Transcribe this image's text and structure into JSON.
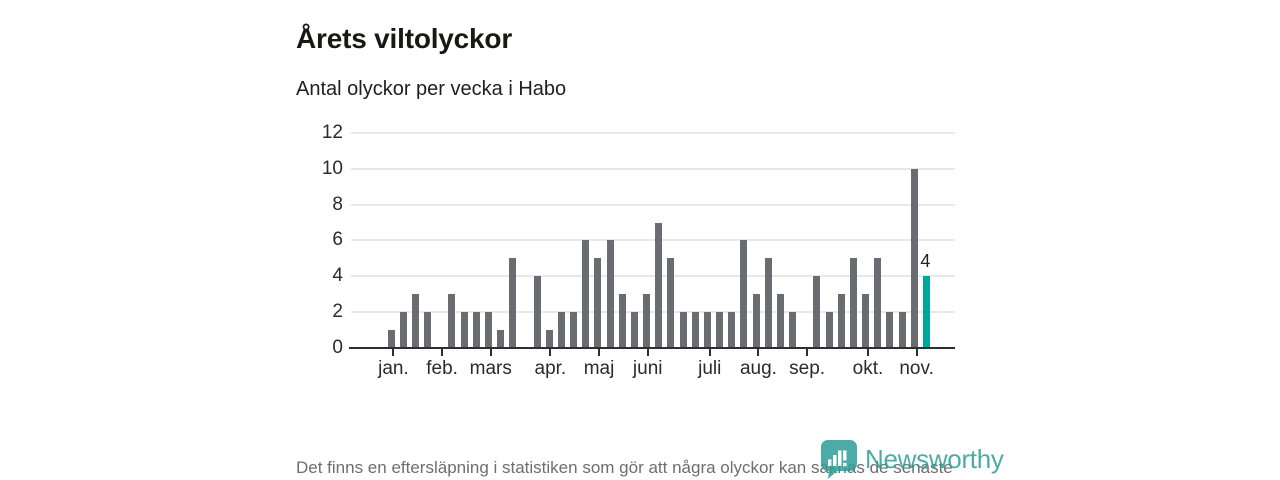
{
  "header": {
    "title": "Årets viltolyckor",
    "subtitle": "Antal olyckor per vecka i Habo"
  },
  "chart_data": {
    "type": "bar",
    "title": "Årets viltolyckor",
    "subtitle": "Antal olyckor per vecka i Habo",
    "x_unit": "vecka",
    "week_start": 1,
    "values": [
      1,
      2,
      3,
      2,
      0,
      3,
      2,
      2,
      2,
      1,
      5,
      0,
      4,
      1,
      2,
      2,
      6,
      5,
      6,
      3,
      2,
      3,
      7,
      5,
      2,
      2,
      2,
      2,
      2,
      6,
      3,
      5,
      3,
      2,
      0,
      4,
      2,
      3,
      5,
      3,
      5,
      2,
      2,
      10,
      4
    ],
    "highlight_index": 44,
    "highlight_value_label": "4",
    "ylim": [
      0,
      12
    ],
    "y_ticks": [
      0,
      2,
      4,
      6,
      8,
      10,
      12
    ],
    "grid": true,
    "legend": "none",
    "x_ticks": [
      {
        "label": "jan.",
        "week": 1.2
      },
      {
        "label": "feb.",
        "week": 5.2
      },
      {
        "label": "mars",
        "week": 9.2
      },
      {
        "label": "apr.",
        "week": 14.1
      },
      {
        "label": "maj",
        "week": 18.1
      },
      {
        "label": "juni",
        "week": 22.1
      },
      {
        "label": "juli",
        "week": 27.2
      },
      {
        "label": "aug.",
        "week": 31.2
      },
      {
        "label": "sep.",
        "week": 35.2
      },
      {
        "label": "okt.",
        "week": 40.2
      },
      {
        "label": "nov.",
        "week": 44.2
      }
    ],
    "bar_color": "#6b6b72",
    "highlight_color": "#00a59c",
    "axis_color": "#2e2e2e",
    "grid_color": "#e8e8e8",
    "tick_label_color": "#2b2b2b"
  },
  "footer": {
    "note": "Det finns en eftersläpning i statistiken som gör att några olyckor kan saknas de senaste veckorna.",
    "brand": "Newsworthy",
    "brand_color": "#2f9e99"
  }
}
